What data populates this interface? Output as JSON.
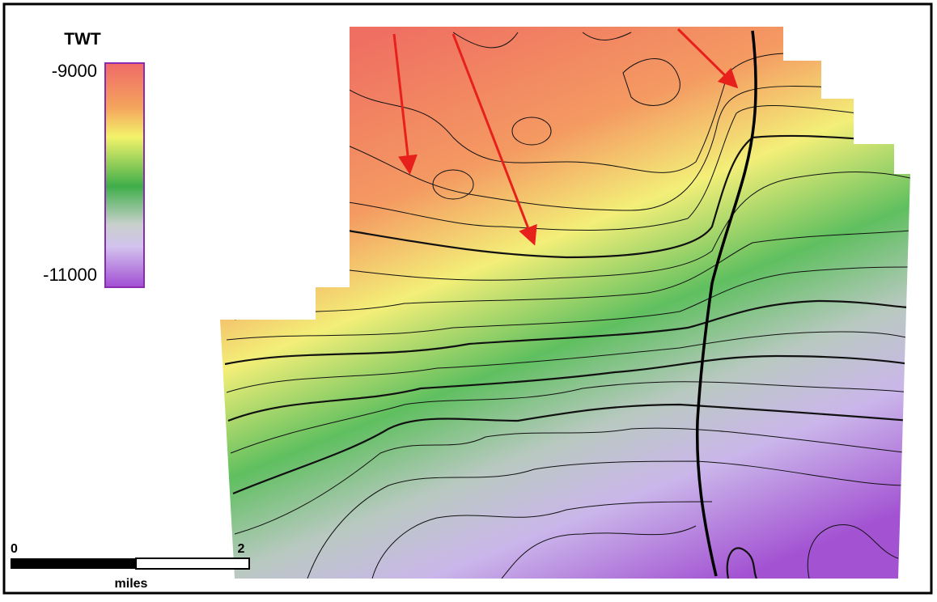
{
  "legend": {
    "title": "TWT",
    "max": -9000,
    "min": -11000
  },
  "scale_bar": {
    "start": 0,
    "end": 2,
    "unit": "miles"
  }
}
